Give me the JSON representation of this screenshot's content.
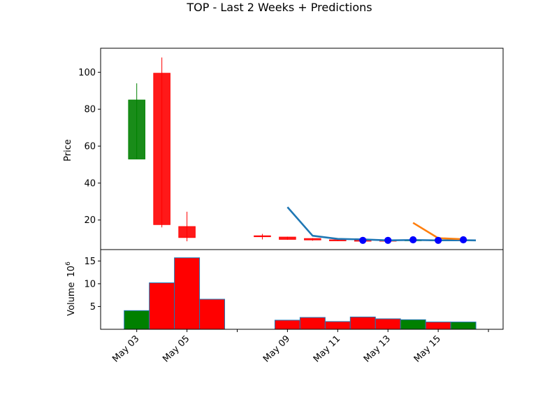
{
  "chart_data": {
    "type": "candlestick",
    "title": "TOP - Last 2 Weeks + Predictions",
    "price_panel": {
      "ylabel": "Price",
      "ylim": [
        4,
        113
      ],
      "yticks": [
        20,
        40,
        60,
        80,
        100
      ],
      "candles": [
        {
          "date": "2023-05-03",
          "open": 53,
          "high": 94,
          "low": 53,
          "close": 85,
          "color": "green"
        },
        {
          "date": "2023-05-04",
          "open": 99.5,
          "high": 108,
          "low": 16,
          "close": 17.5,
          "color": "red"
        },
        {
          "date": "2023-05-05",
          "open": 16.5,
          "high": 24.5,
          "low": 8.5,
          "close": 10.5,
          "color": "red"
        },
        {
          "date": "2023-05-08",
          "open": 11.5,
          "high": 12.5,
          "low": 9.5,
          "close": 11,
          "color": "red"
        },
        {
          "date": "2023-05-09",
          "open": 10.8,
          "high": 11,
          "low": 9.3,
          "close": 9.5,
          "color": "red"
        },
        {
          "date": "2023-05-10",
          "open": 10,
          "high": 10.2,
          "low": 8.8,
          "close": 9.2,
          "color": "red"
        },
        {
          "date": "2023-05-11",
          "open": 9.3,
          "high": 9.5,
          "low": 8.6,
          "close": 8.9,
          "color": "red"
        },
        {
          "date": "2023-05-12",
          "open": 9.1,
          "high": 9.4,
          "low": 8.6,
          "close": 8.8,
          "color": "red"
        },
        {
          "date": "2023-05-13",
          "open": 9.1,
          "high": 9.3,
          "low": 8.6,
          "close": 8.8,
          "color": "red"
        },
        {
          "date": "2023-05-14",
          "open": 8.9,
          "high": 9.4,
          "low": 8.6,
          "close": 9.3,
          "color": "green"
        },
        {
          "date": "2023-05-15",
          "open": 9.3,
          "high": 9.4,
          "low": 8.6,
          "close": 8.8,
          "color": "red"
        },
        {
          "date": "2023-05-16",
          "open": 8.8,
          "high": 9.4,
          "low": 8.6,
          "close": 9.3,
          "color": "green"
        }
      ],
      "lines": [
        {
          "color": "#1f77b4",
          "points": [
            [
              "2023-05-09",
              27
            ],
            [
              "2023-05-10",
              11.5
            ],
            [
              "2023-05-11",
              9.8
            ],
            [
              "2023-05-12",
              9.5
            ],
            [
              "2023-05-13",
              9.0
            ],
            [
              "2023-05-14",
              9.2
            ],
            [
              "2023-05-15",
              9.0
            ],
            [
              "2023-05-16",
              9.1
            ],
            [
              "2023-05-16T12:00",
              9.0
            ]
          ]
        },
        {
          "color": "#ff7f0e",
          "points": [
            [
              "2023-05-14",
              18.5
            ],
            [
              "2023-05-15",
              10.2
            ],
            [
              "2023-05-16",
              9.6
            ]
          ]
        }
      ],
      "markers": {
        "color": "#0000ff",
        "points": [
          [
            "2023-05-12",
            9.0
          ],
          [
            "2023-05-13",
            9.0
          ],
          [
            "2023-05-14",
            9.3
          ],
          [
            "2023-05-15",
            9.0
          ],
          [
            "2023-05-16",
            9.3
          ]
        ]
      }
    },
    "volume_panel": {
      "ylabel": "Volume",
      "ylabel_unit_base": "10",
      "ylabel_unit_exp": "6",
      "ylim": [
        0,
        17.5
      ],
      "yticks": [
        5,
        10,
        15
      ],
      "bars": [
        {
          "date": "2023-05-03",
          "value": 4.1,
          "color": "green"
        },
        {
          "date": "2023-05-04",
          "value": 10.2,
          "color": "red"
        },
        {
          "date": "2023-05-05",
          "value": 15.7,
          "color": "red"
        },
        {
          "date": "2023-05-06",
          "value": 6.6,
          "color": "red"
        },
        {
          "date": "2023-05-09",
          "value": 2.0,
          "color": "red"
        },
        {
          "date": "2023-05-10",
          "value": 2.6,
          "color": "red"
        },
        {
          "date": "2023-05-11",
          "value": 1.7,
          "color": "red"
        },
        {
          "date": "2023-05-12",
          "value": 2.7,
          "color": "red"
        },
        {
          "date": "2023-05-13",
          "value": 2.3,
          "color": "red"
        },
        {
          "date": "2023-05-14",
          "value": 2.1,
          "color": "green"
        },
        {
          "date": "2023-05-15",
          "value": 1.6,
          "color": "red"
        },
        {
          "date": "2023-05-16",
          "value": 1.6,
          "color": "green"
        }
      ]
    },
    "x_axis": {
      "tick_dates": [
        "2023-05-03",
        "2023-05-05",
        "2023-05-07",
        "2023-05-09",
        "2023-05-11",
        "2023-05-13",
        "2023-05-15",
        "2023-05-17"
      ],
      "tick_labels": [
        "May 03",
        "May 05",
        "",
        "May 09",
        "May 11",
        "May 13",
        "May 15",
        ""
      ],
      "xlim": [
        "2023-05-01T13:30",
        "2023-05-17T14:00"
      ]
    },
    "colors": {
      "green": "#008000",
      "red": "#ff0000",
      "edge_volume": "#1f77b4"
    }
  }
}
